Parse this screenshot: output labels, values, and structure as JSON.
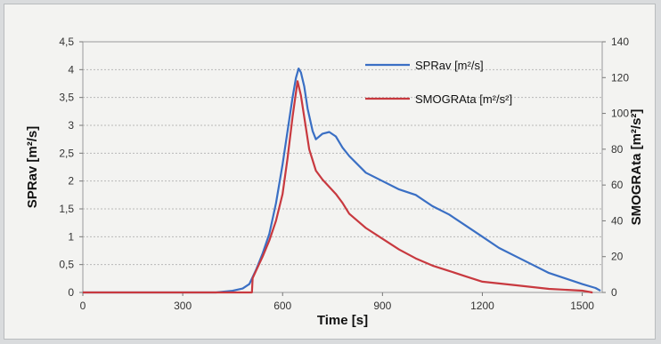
{
  "chart_data": {
    "type": "line",
    "xlabel": "Time [s]",
    "ylabel_left": "SPRav [m²/s]",
    "ylabel_right": "SMOGRAta [m²/s²]",
    "xlim": [
      0,
      1560
    ],
    "ylim_left": [
      0,
      4.5
    ],
    "ylim_right": [
      0,
      140
    ],
    "x_ticks": [
      "0",
      "300",
      "600",
      "900",
      "1200",
      "1500"
    ],
    "y_ticks_left": [
      "0",
      "0,5",
      "1",
      "1,5",
      "2",
      "2,5",
      "3",
      "3,5",
      "4",
      "4,5"
    ],
    "y_ticks_right": [
      "0",
      "20",
      "40",
      "60",
      "80",
      "100",
      "120",
      "140"
    ],
    "grid": true,
    "legend_position": "top-right",
    "series": [
      {
        "name": "SPRav [m²/s]",
        "axis": "left",
        "color": "#3a6fc4",
        "x": [
          0,
          200,
          400,
          450,
          480,
          500,
          520,
          540,
          560,
          580,
          600,
          615,
          630,
          640,
          648,
          655,
          665,
          675,
          690,
          700,
          720,
          740,
          760,
          780,
          800,
          850,
          900,
          950,
          1000,
          1050,
          1100,
          1150,
          1200,
          1250,
          1300,
          1350,
          1400,
          1450,
          1500,
          1540,
          1555
        ],
        "y": [
          0,
          0,
          0,
          0.03,
          0.07,
          0.15,
          0.4,
          0.7,
          1.05,
          1.6,
          2.3,
          2.9,
          3.5,
          3.85,
          4.02,
          3.95,
          3.7,
          3.3,
          2.9,
          2.75,
          2.85,
          2.88,
          2.8,
          2.6,
          2.45,
          2.15,
          2.0,
          1.85,
          1.75,
          1.55,
          1.4,
          1.2,
          1.0,
          0.8,
          0.65,
          0.5,
          0.35,
          0.25,
          0.15,
          0.08,
          0.03
        ]
      },
      {
        "name": "SMOGRAta [m²/s²]",
        "axis": "right",
        "color": "#c8393f",
        "x": [
          0,
          200,
          400,
          508,
          510,
          520,
          540,
          560,
          580,
          600,
          615,
          630,
          645,
          655,
          665,
          680,
          700,
          720,
          740,
          760,
          780,
          800,
          850,
          900,
          950,
          1000,
          1050,
          1100,
          1150,
          1200,
          1300,
          1400,
          1500,
          1530,
          1531
        ],
        "y": [
          0,
          0,
          0,
          0,
          8,
          12,
          20,
          29,
          40,
          55,
          75,
          98,
          118,
          110,
          98,
          80,
          68,
          63,
          59,
          55,
          50,
          44,
          36,
          30,
          24,
          19,
          15,
          12,
          9,
          6,
          4,
          2,
          1,
          0,
          0
        ]
      }
    ]
  }
}
